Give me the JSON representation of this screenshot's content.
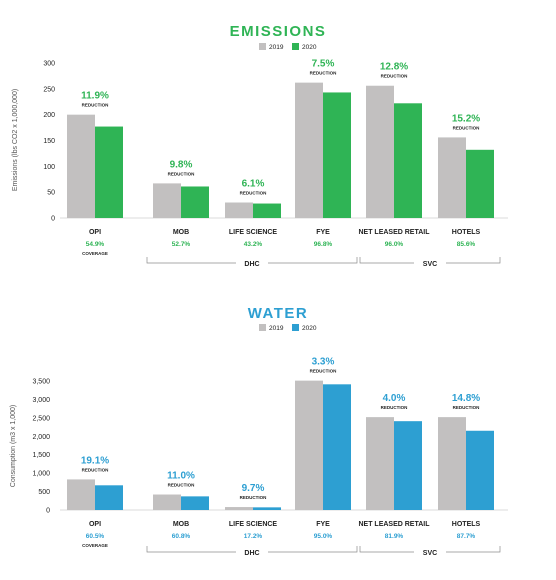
{
  "colors": {
    "bar_2019": "#c2c0c0",
    "emissions_2020": "#2fb455",
    "water_2020": "#2d9fd2",
    "text": "#222222",
    "axis": "#555555",
    "bracket": "#8c8c8c"
  },
  "chart_data": [
    {
      "type": "bar",
      "title": "EMISSIONS",
      "ylabel": "Emissions (lbs CO2 x 1,000,000)",
      "ylim": [
        0,
        300
      ],
      "yticks": [
        "0",
        "50",
        "100",
        "150",
        "200",
        "250",
        "300"
      ],
      "accent": "#2fb455",
      "categories": [
        "OPI",
        "MOB",
        "LIFE SCIENCE",
        "FYE",
        "NET LEASED RETAIL",
        "HOTELS"
      ],
      "series": [
        {
          "name": "2019",
          "values": [
            200,
            67,
            30,
            262,
            256,
            156
          ]
        },
        {
          "name": "2020",
          "values": [
            177,
            61,
            28,
            243,
            222,
            132
          ]
        }
      ],
      "reductions": [
        "11.9%",
        "9.8%",
        "6.1%",
        "7.5%",
        "12.8%",
        "15.2%"
      ],
      "reduction_label": "REDUCTION",
      "coverage": [
        "54.9%",
        "52.7%",
        "43.2%",
        "96.8%",
        "96.0%",
        "85.6%"
      ],
      "coverage_label": "COVERAGE",
      "groups": [
        {
          "label": "DHC",
          "from": 1,
          "to": 3
        },
        {
          "label": "SVC",
          "from": 4,
          "to": 5
        }
      ]
    },
    {
      "type": "bar",
      "title": "WATER",
      "ylabel": "Consumption (m3 x 1,000)",
      "ylim": [
        0,
        3500
      ],
      "yticks": [
        "0",
        "500",
        "1,000",
        "1,500",
        "2,000",
        "2,500",
        "3,000",
        "3,500"
      ],
      "accent": "#2d9fd2",
      "categories": [
        "OPI",
        "MOB",
        "LIFE SCIENCE",
        "FYE",
        "NET LEASED RETAIL",
        "HOTELS"
      ],
      "series": [
        {
          "name": "2019",
          "values": [
            830,
            420,
            80,
            3510,
            2520,
            2520
          ]
        },
        {
          "name": "2020",
          "values": [
            670,
            370,
            72,
            3410,
            2410,
            2150
          ]
        }
      ],
      "reductions": [
        "19.1%",
        "11.0%",
        "9.7%",
        "3.3%",
        "4.0%",
        "14.8%"
      ],
      "reduction_label": "REDUCTION",
      "coverage": [
        "60.5%",
        "60.8%",
        "17.2%",
        "95.0%",
        "81.9%",
        "87.7%"
      ],
      "coverage_label": "COVERAGE",
      "groups": [
        {
          "label": "DHC",
          "from": 1,
          "to": 3
        },
        {
          "label": "SVC",
          "from": 4,
          "to": 5
        }
      ]
    }
  ]
}
